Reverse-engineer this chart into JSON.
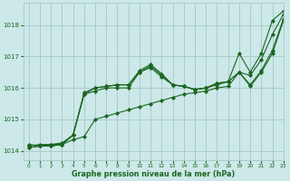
{
  "title": "Graphe pression niveau de la mer (hPa)",
  "bg_color": "#cce8e8",
  "grid_color": "#aacccc",
  "line_color": "#1a6620",
  "marker_color": "#1a6620",
  "xlim": [
    -0.5,
    23
  ],
  "ylim": [
    1013.7,
    1018.7
  ],
  "yticks": [
    1014,
    1015,
    1016,
    1017,
    1018
  ],
  "xticks": [
    0,
    1,
    2,
    3,
    4,
    5,
    6,
    7,
    8,
    9,
    10,
    11,
    12,
    13,
    14,
    15,
    16,
    17,
    18,
    19,
    20,
    21,
    22,
    23
  ],
  "series": [
    [
      1014.2,
      1014.15,
      1014.2,
      1014.2,
      1014.35,
      1014.45,
      1015.0,
      1015.1,
      1015.2,
      1015.3,
      1015.4,
      1015.5,
      1015.6,
      1015.7,
      1015.8,
      1015.85,
      1015.9,
      1016.0,
      1016.05,
      1016.5,
      1016.4,
      1016.9,
      1017.7,
      1018.35
    ],
    [
      1014.15,
      1014.2,
      1014.2,
      1014.25,
      1014.5,
      1015.8,
      1015.9,
      1016.0,
      1016.0,
      1016.0,
      1016.5,
      1016.65,
      1016.35,
      1016.1,
      1016.05,
      1015.95,
      1016.0,
      1016.1,
      1016.2,
      1016.5,
      1016.05,
      1016.5,
      1017.1,
      1018.15
    ],
    [
      1014.1,
      1014.15,
      1014.15,
      1014.2,
      1014.5,
      1015.85,
      1016.0,
      1016.05,
      1016.1,
      1016.1,
      1016.55,
      1016.75,
      1016.45,
      1016.1,
      1016.05,
      1015.95,
      1016.0,
      1016.15,
      1016.2,
      1016.5,
      1016.1,
      1016.55,
      1017.2,
      1018.2
    ],
    [
      1014.1,
      1014.15,
      1014.15,
      1014.2,
      1014.5,
      1015.8,
      1016.0,
      1016.05,
      1016.1,
      1016.1,
      1016.5,
      1016.7,
      1016.4,
      1016.1,
      1016.05,
      1015.95,
      1016.0,
      1016.15,
      1016.2,
      1017.1,
      1016.5,
      1017.1,
      1018.15,
      1018.45
    ]
  ]
}
